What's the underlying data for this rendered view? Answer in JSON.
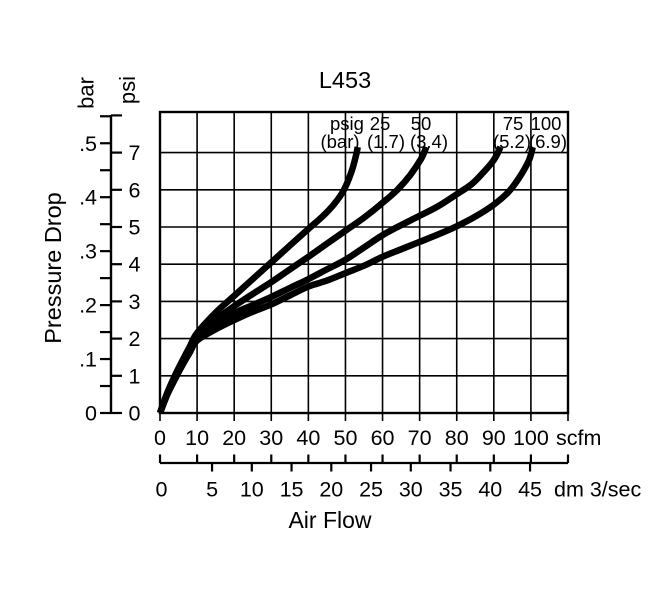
{
  "chart_data": {
    "type": "line",
    "title": "L453",
    "grid": true,
    "legend_position": "inside-top",
    "axis_ranges": {
      "scfm": [
        0,
        110
      ],
      "psi": [
        0,
        8
      ],
      "bar": [
        0,
        0.55
      ],
      "dm3_sec": [
        0,
        45
      ]
    },
    "colors": {
      "foreground": "#000000",
      "background": "#ffffff"
    },
    "x_axis": {
      "title": "Air Flow",
      "primary": {
        "unit": "scfm",
        "ticks": [
          0,
          10,
          20,
          30,
          40,
          50,
          60,
          70,
          80,
          90,
          100
        ]
      },
      "secondary": {
        "unit": "dm 3/sec",
        "ticks": [
          0,
          5,
          10,
          15,
          20,
          25,
          30,
          35,
          40,
          45
        ]
      }
    },
    "y_axis": {
      "title": "Pressure Drop",
      "primary": {
        "unit": "psi",
        "ticks": [
          0,
          1,
          2,
          3,
          4,
          5,
          6,
          7
        ]
      },
      "secondary": {
        "unit": "bar",
        "tick_labels": [
          "0",
          ".1",
          ".2",
          ".3",
          ".4",
          ".5"
        ]
      }
    },
    "legend": {
      "pressure_unit_label": "psig",
      "pressure_unit_paren_label": "(bar)"
    },
    "series": [
      {
        "psig": "25",
        "bar": "(1.7)",
        "points": [
          [
            0,
            0
          ],
          [
            2,
            0.55
          ],
          [
            4,
            1.0
          ],
          [
            6,
            1.4
          ],
          [
            8,
            1.78
          ],
          [
            10,
            2.15
          ],
          [
            15,
            2.7
          ],
          [
            20,
            3.15
          ],
          [
            25,
            3.6
          ],
          [
            30,
            4.05
          ],
          [
            35,
            4.5
          ],
          [
            40,
            4.95
          ],
          [
            44,
            5.3
          ],
          [
            47,
            5.62
          ],
          [
            49.5,
            5.98
          ],
          [
            51.5,
            6.45
          ],
          [
            52.8,
            6.9
          ],
          [
            53.3,
            7.15
          ]
        ]
      },
      {
        "psig": "50",
        "bar": "(3.4)",
        "points": [
          [
            0,
            0
          ],
          [
            2,
            0.53
          ],
          [
            4,
            0.97
          ],
          [
            6,
            1.36
          ],
          [
            8,
            1.72
          ],
          [
            10,
            2.08
          ],
          [
            15,
            2.5
          ],
          [
            20,
            2.87
          ],
          [
            25,
            3.2
          ],
          [
            30,
            3.52
          ],
          [
            35,
            3.86
          ],
          [
            40,
            4.2
          ],
          [
            45,
            4.55
          ],
          [
            50,
            4.9
          ],
          [
            55,
            5.25
          ],
          [
            60,
            5.65
          ],
          [
            64,
            6.0
          ],
          [
            67.5,
            6.4
          ],
          [
            70.5,
            6.85
          ],
          [
            71.8,
            7.15
          ]
        ]
      },
      {
        "psig": "75",
        "bar": "(5.2)",
        "points": [
          [
            0,
            0
          ],
          [
            2,
            0.52
          ],
          [
            4,
            0.94
          ],
          [
            6,
            1.32
          ],
          [
            8,
            1.67
          ],
          [
            10,
            2.02
          ],
          [
            15,
            2.38
          ],
          [
            20,
            2.68
          ],
          [
            25,
            2.9
          ],
          [
            30,
            3.12
          ],
          [
            35,
            3.36
          ],
          [
            40,
            3.6
          ],
          [
            45,
            3.86
          ],
          [
            50,
            4.12
          ],
          [
            55,
            4.45
          ],
          [
            60,
            4.78
          ],
          [
            65,
            5.05
          ],
          [
            70,
            5.3
          ],
          [
            75,
            5.56
          ],
          [
            80,
            5.88
          ],
          [
            84,
            6.15
          ],
          [
            87,
            6.45
          ],
          [
            90,
            6.8
          ],
          [
            91.8,
            7.15
          ]
        ]
      },
      {
        "psig": "100",
        "bar": "(6.9)",
        "points": [
          [
            0,
            0
          ],
          [
            2,
            0.5
          ],
          [
            4,
            0.9
          ],
          [
            6,
            1.28
          ],
          [
            8,
            1.62
          ],
          [
            10,
            1.95
          ],
          [
            15,
            2.25
          ],
          [
            20,
            2.5
          ],
          [
            25,
            2.72
          ],
          [
            30,
            2.92
          ],
          [
            35,
            3.16
          ],
          [
            40,
            3.4
          ],
          [
            45,
            3.56
          ],
          [
            50,
            3.76
          ],
          [
            55,
            3.96
          ],
          [
            60,
            4.2
          ],
          [
            65,
            4.4
          ],
          [
            70,
            4.6
          ],
          [
            75,
            4.8
          ],
          [
            80,
            5.02
          ],
          [
            85,
            5.28
          ],
          [
            90,
            5.6
          ],
          [
            94,
            5.95
          ],
          [
            97,
            6.35
          ],
          [
            99.5,
            6.8
          ],
          [
            100.5,
            7.15
          ]
        ]
      }
    ]
  }
}
